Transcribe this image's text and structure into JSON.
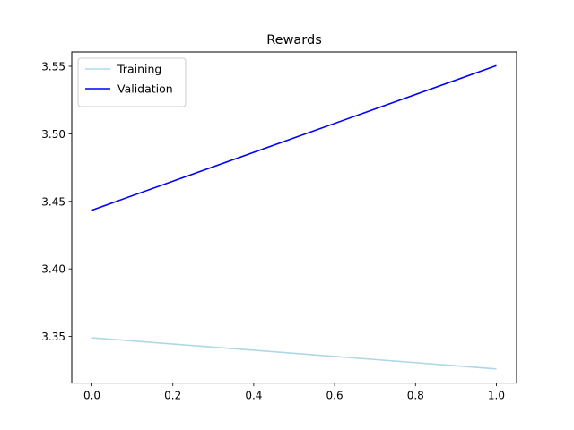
{
  "chart_data": {
    "type": "line",
    "title": "Rewards",
    "xlabel": "",
    "ylabel": "",
    "xlim": [
      -0.05,
      1.05
    ],
    "ylim": [
      3.3155,
      3.5606
    ],
    "x_ticks": [
      0.0,
      0.2,
      0.4,
      0.6,
      0.8,
      1.0
    ],
    "x_tick_labels": [
      "0.0",
      "0.2",
      "0.4",
      "0.6",
      "0.8",
      "1.0"
    ],
    "y_ticks": [
      3.35,
      3.4,
      3.45,
      3.5,
      3.55
    ],
    "y_tick_labels": [
      "3.35",
      "3.40",
      "3.45",
      "3.50",
      "3.55"
    ],
    "grid": false,
    "legend_position": "top-left",
    "series": [
      {
        "name": "Training",
        "color": "#add8e6",
        "x": [
          0,
          1
        ],
        "y": [
          3.349,
          3.326
        ]
      },
      {
        "name": "Validation",
        "color": "#0000ff",
        "x": [
          0,
          1
        ],
        "y": [
          3.4435,
          3.5505
        ]
      }
    ]
  }
}
